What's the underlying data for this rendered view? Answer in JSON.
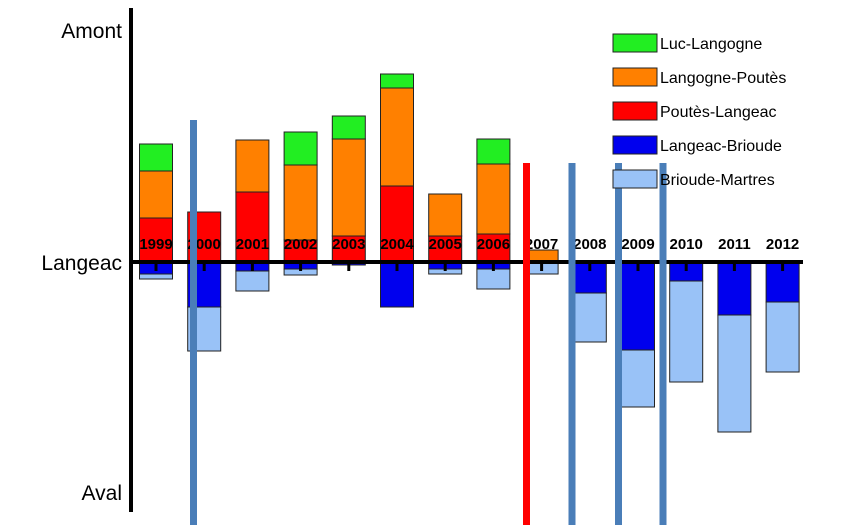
{
  "chart_data": {
    "type": "bar",
    "stacked": true,
    "title": "",
    "xlabel": "",
    "ylabel": "",
    "y_axis_labels": {
      "top": "Amont",
      "middle": "Langeac",
      "bottom": "Aval"
    },
    "categories": [
      "1999",
      "2000",
      "2001",
      "2002",
      "2003",
      "2004",
      "2005",
      "2006",
      "2007",
      "2008",
      "2009",
      "2010",
      "2011",
      "2012"
    ],
    "ylim": [
      -205,
      228
    ],
    "legend_position": "top-right",
    "series": [
      {
        "name": "Luc-Langogne",
        "color": "#22ee22",
        "values": [
          27,
          0,
          0,
          33,
          23,
          14,
          0,
          25,
          0,
          0,
          0,
          0,
          0,
          0
        ]
      },
      {
        "name": "Langogne-Poutès",
        "color": "#ff8000",
        "values": [
          47,
          0,
          52,
          75,
          97,
          98,
          42,
          70,
          12,
          0,
          0,
          0,
          0,
          0
        ]
      },
      {
        "name": "Poutès-Langeac",
        "color": "#ff0000",
        "values": [
          44,
          50,
          70,
          22,
          26,
          76,
          26,
          28,
          0,
          0,
          0,
          0,
          0,
          0
        ]
      },
      {
        "name": "Langeac-Brioude",
        "color": "#0000ee",
        "values": [
          -12,
          -45,
          -9,
          -7,
          -3,
          -45,
          -7,
          -7,
          0,
          -31,
          -88,
          -19,
          -53,
          -40
        ]
      },
      {
        "name": "Brioude-Martres",
        "color": "#99c2f7",
        "values": [
          -5,
          -44,
          -20,
          -6,
          0,
          0,
          -5,
          -20,
          -12,
          -49,
          -57,
          -101,
          -117,
          -70
        ]
      }
    ],
    "vertical_markers": [
      {
        "position": "between 1999 and 2000",
        "color": "#4a7eb8"
      },
      {
        "position": "between 2006 and 2007",
        "color": "#ff0000"
      },
      {
        "position": "between 2007 and 2008",
        "color": "#4a7eb8"
      },
      {
        "position": "between 2008 and 2009",
        "color": "#4a7eb8"
      },
      {
        "position": "between 2009 and 2010",
        "color": "#4a7eb8"
      }
    ]
  }
}
